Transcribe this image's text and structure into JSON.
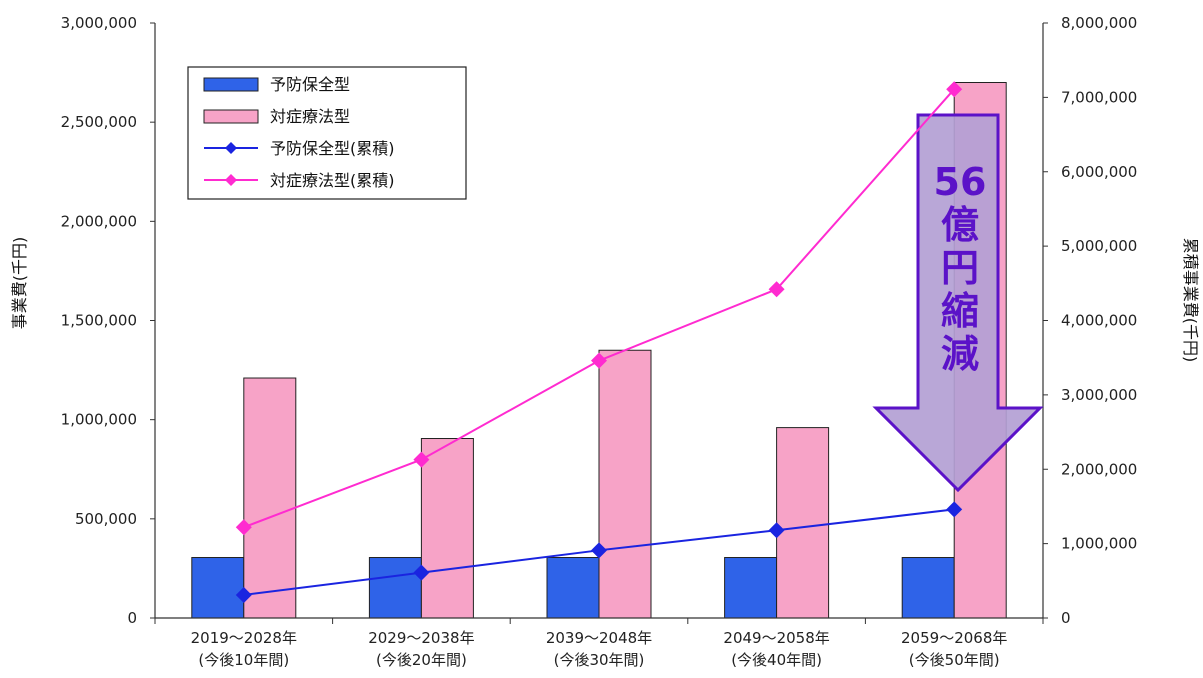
{
  "chart_data": {
    "type": "bar",
    "categories": [
      [
        "2019～2028年",
        "(今後10年間)"
      ],
      [
        "2029～2038年",
        "(今後20年間)"
      ],
      [
        "2039～2048年",
        "(今後30年間)"
      ],
      [
        "2049～2058年",
        "(今後40年間)"
      ],
      [
        "2059～2068年",
        "(今後50年間)"
      ]
    ],
    "series": [
      {
        "name": "予防保全型",
        "kind": "bar",
        "axis": "left",
        "color": "#2f63e8",
        "values": [
          305000,
          305000,
          305000,
          305000,
          305000
        ]
      },
      {
        "name": "対症療法型",
        "kind": "bar",
        "axis": "left",
        "color": "#f7a3c7",
        "values": [
          1210000,
          905000,
          1350000,
          960000,
          2700000
        ]
      },
      {
        "name": "予防保全型(累積)",
        "kind": "line",
        "axis": "right",
        "color": "#1a24e0",
        "values": [
          310000,
          610000,
          910000,
          1180000,
          1460000
        ]
      },
      {
        "name": "対症療法型(累積)",
        "kind": "line",
        "axis": "right",
        "color": "#ff2bd0",
        "values": [
          1220000,
          2130000,
          3460000,
          4420000,
          7110000
        ]
      }
    ],
    "ylabel": "事業費(千円)",
    "y2label": "累積事業費(千円)",
    "ylim": [
      0,
      3000000
    ],
    "y2lim": [
      0,
      8000000
    ],
    "yticks": [
      "0",
      "500,000",
      "1,000,000",
      "1,500,000",
      "2,000,000",
      "2,500,000",
      "3,000,000"
    ],
    "y2ticks": [
      "0",
      "1,000,000",
      "2,000,000",
      "3,000,000",
      "4,000,000",
      "5,000,000",
      "6,000,000",
      "7,000,000",
      "8,000,000"
    ],
    "grid": false,
    "legend_position": "top-left",
    "annotation": {
      "lines": [
        "56",
        "億",
        "円",
        "縮",
        "減"
      ],
      "style": "down-arrow",
      "fill": "#b3a0d4",
      "stroke": "#5b12c8"
    }
  }
}
